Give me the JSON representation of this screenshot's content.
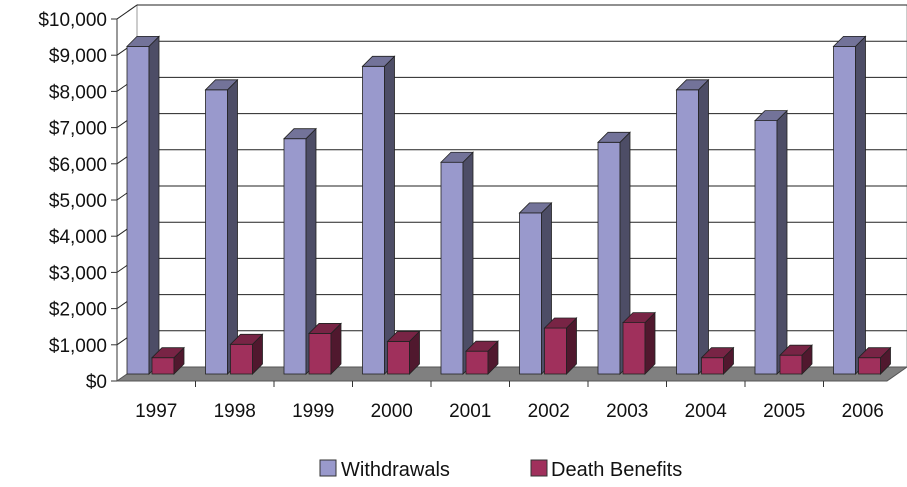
{
  "chart_data": {
    "type": "bar",
    "categories": [
      "1997",
      "1998",
      "1999",
      "2000",
      "2001",
      "2002",
      "2003",
      "2004",
      "2005",
      "2006"
    ],
    "y_ticks": [
      "$0",
      "$1,000",
      "$2,000",
      "$3,000",
      "$4,000",
      "$5,000",
      "$6,000",
      "$7,000",
      "$8,000",
      "$9,000",
      "$10,000"
    ],
    "ylim": [
      0,
      10000
    ],
    "grid": true,
    "style": "3d-clustered-column",
    "legend_position": "bottom",
    "series": [
      {
        "name": "Withdrawals",
        "color": "#9999cc",
        "values": [
          9050,
          7850,
          6500,
          8500,
          5850,
          4450,
          6400,
          7850,
          7000,
          9050
        ]
      },
      {
        "name": "Death Benefits",
        "color": "#a0305c",
        "values": [
          450,
          820,
          1120,
          900,
          630,
          1270,
          1420,
          450,
          520,
          450
        ]
      }
    ]
  }
}
